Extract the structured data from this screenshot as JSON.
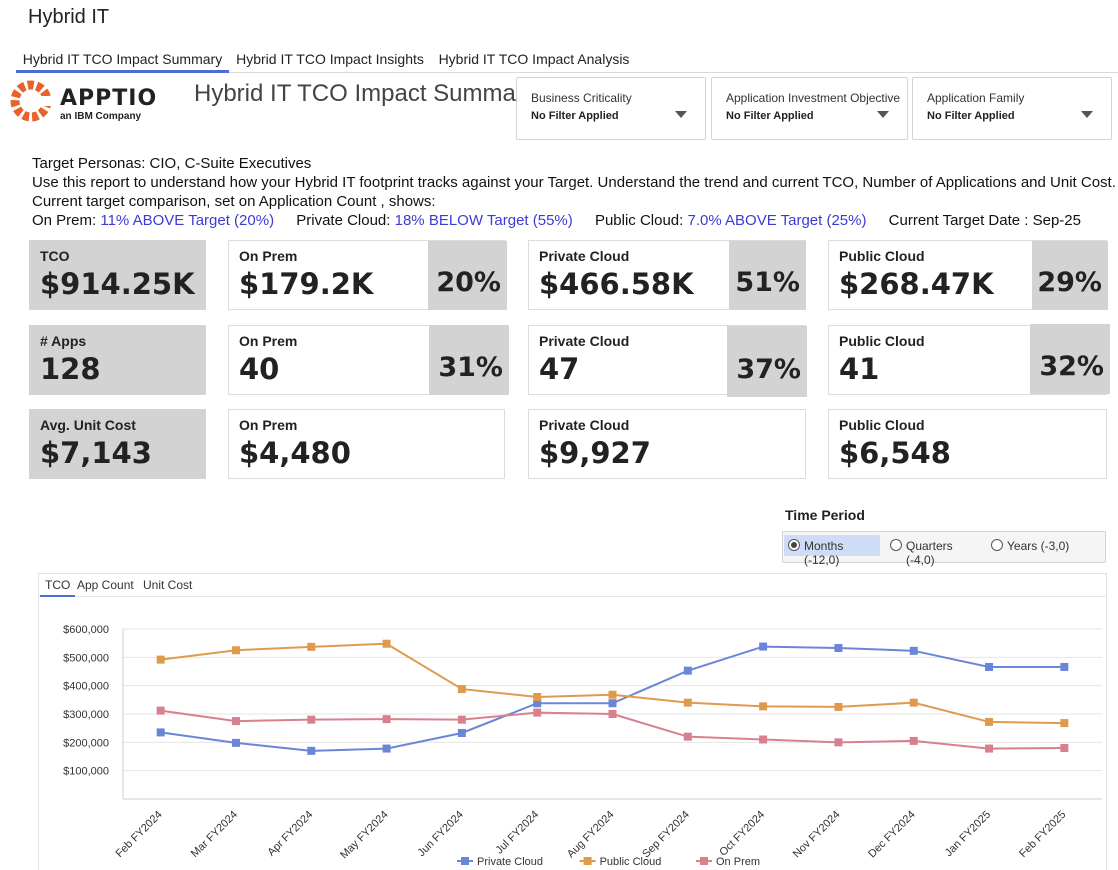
{
  "app": {
    "title": "Hybrid IT"
  },
  "tabs": [
    {
      "label": "Hybrid IT TCO Impact Summary",
      "active": true
    },
    {
      "label": "Hybrid IT TCO Impact Insights",
      "active": false
    },
    {
      "label": "Hybrid IT TCO Impact Analysis",
      "active": false
    }
  ],
  "logo": {
    "name": "APPTIO",
    "sub": "an IBM Company",
    "icon": "apptio-logo-icon",
    "color": "#e8622a"
  },
  "page": {
    "heading": "Hybrid IT TCO Impact Summary"
  },
  "filters": [
    {
      "label": "Business Criticality",
      "value": "No Filter Applied"
    },
    {
      "label": "Application Investment Objective",
      "value": "No Filter Applied"
    },
    {
      "label": "Application Family",
      "value": "No Filter Applied"
    }
  ],
  "description": {
    "line1": "Target Personas: CIO, C-Suite Executives",
    "line2": "Use this report to understand how your Hybrid IT footprint tracks against your Target. Understand the trend and current TCO, Number of Applications and Unit Cost.",
    "line3": "Current target comparison, set on Application Count , shows:",
    "onprem_label": "On Prem: ",
    "onprem_value": "11% ABOVE Target (20%)",
    "private_label": "Private Cloud: ",
    "private_value": "18% BELOW Target (55%)",
    "public_label": "Public Cloud: ",
    "public_value": "7.0% ABOVE Target (25%)",
    "target_date": "Current Target Date : Sep-25"
  },
  "kpis": {
    "tco": {
      "label": "TCO",
      "value": "$914.25K"
    },
    "tco_onprem": {
      "label": "On Prem",
      "value": "$179.2K",
      "pct": "20%"
    },
    "tco_private": {
      "label": "Private Cloud",
      "value": "$466.58K",
      "pct": "51%"
    },
    "tco_public": {
      "label": "Public Cloud",
      "value": "$268.47K",
      "pct": "29%"
    },
    "apps": {
      "label": "# Apps",
      "value": "128"
    },
    "apps_onprem": {
      "label": "On Prem",
      "value": "40",
      "pct": "31%"
    },
    "apps_private": {
      "label": "Private Cloud",
      "value": "47",
      "pct": "37%"
    },
    "apps_public": {
      "label": "Public Cloud",
      "value": "41",
      "pct": "32%"
    },
    "unit": {
      "label": "Avg. Unit Cost",
      "value": "$7,143"
    },
    "unit_onprem": {
      "label": "On Prem",
      "value": "$4,480"
    },
    "unit_private": {
      "label": "Private Cloud",
      "value": "$9,927"
    },
    "unit_public": {
      "label": "Public Cloud",
      "value": "$6,548"
    }
  },
  "time_period": {
    "title": "Time Period",
    "options": [
      {
        "label": "Months (-12,0)",
        "selected": true
      },
      {
        "label": "Quarters (-4,0)",
        "selected": false
      },
      {
        "label": "Years (-3,0)",
        "selected": false
      }
    ]
  },
  "chart_tabs": [
    {
      "label": "TCO",
      "active": true
    },
    {
      "label": "App Count",
      "active": false
    },
    {
      "label": "Unit Cost",
      "active": false
    }
  ],
  "chart_data": {
    "type": "line",
    "categories": [
      "Feb FY2024",
      "Mar FY2024",
      "Apr FY2024",
      "May FY2024",
      "Jun FY2024",
      "Jul FY2024",
      "Aug FY2024",
      "Sep FY2024",
      "Oct FY2024",
      "Nov FY2024",
      "Dec FY2024",
      "Jan FY2025",
      "Feb FY2025"
    ],
    "series": [
      {
        "name": "Private Cloud",
        "color": "#6b86d8",
        "values": [
          235000,
          198000,
          170000,
          178000,
          233000,
          338000,
          338000,
          453000,
          538000,
          533000,
          523000,
          466000,
          466000
        ]
      },
      {
        "name": "Public Cloud",
        "color": "#e09a4e",
        "values": [
          492000,
          525000,
          537000,
          548000,
          388000,
          360000,
          368000,
          340000,
          327000,
          325000,
          340000,
          272000,
          268000
        ]
      },
      {
        "name": "On Prem",
        "color": "#d9808f",
        "values": [
          312000,
          275000,
          280000,
          282000,
          280000,
          305000,
          300000,
          220000,
          210000,
          200000,
          205000,
          178000,
          180000
        ]
      }
    ],
    "yticks": [
      "$100,000",
      "$200,000",
      "$300,000",
      "$400,000",
      "$500,000",
      "$600,000"
    ],
    "ylim": [
      0,
      600000
    ],
    "grid": true,
    "legend": "bottom-center"
  }
}
